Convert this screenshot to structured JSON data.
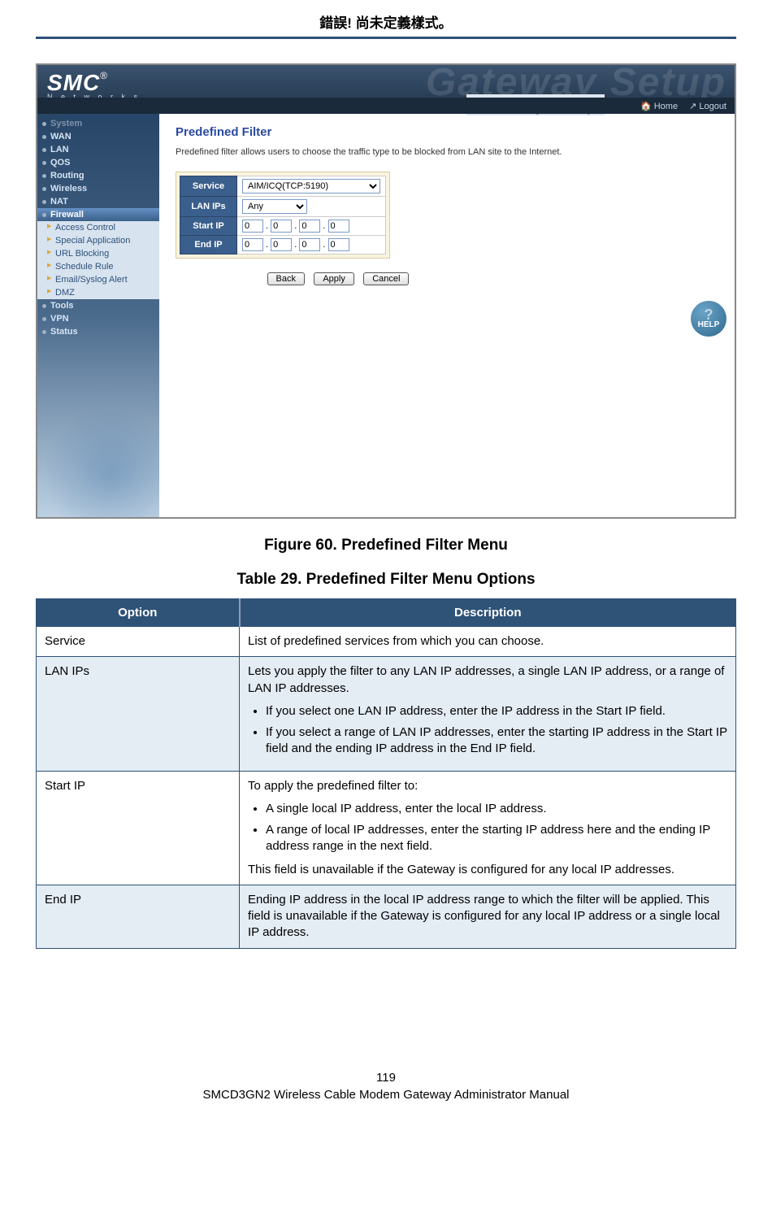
{
  "header_error": "錯誤! 尚未定義樣式。",
  "logo": {
    "main": "SMC",
    "reg": "®",
    "sub": "N e t w o r k s"
  },
  "ghost": "Gateway Setup",
  "subtitle": "Gateway Setup",
  "topbar": {
    "home": "Home",
    "logout": "Logout"
  },
  "sidebar": {
    "items": [
      {
        "label": "System",
        "dim": true
      },
      {
        "label": "WAN"
      },
      {
        "label": "LAN"
      },
      {
        "label": "QOS"
      },
      {
        "label": "Routing"
      },
      {
        "label": "Wireless"
      },
      {
        "label": "NAT"
      },
      {
        "label": "Firewall",
        "active": true
      },
      {
        "label": "Access Control",
        "sub": true
      },
      {
        "label": "Special Application",
        "sub": true
      },
      {
        "label": "URL Blocking",
        "sub": true
      },
      {
        "label": "Schedule Rule",
        "sub": true
      },
      {
        "label": "Email/Syslog Alert",
        "sub": true
      },
      {
        "label": "DMZ",
        "sub": true
      },
      {
        "label": "Tools"
      },
      {
        "label": "VPN"
      },
      {
        "label": "Status"
      }
    ]
  },
  "panel": {
    "title": "Predefined Filter",
    "intro": "Predefined filter allows users to choose the traffic type to be blocked from LAN site to the Internet.",
    "rows": {
      "service": {
        "label": "Service",
        "value": "AIM/ICQ(TCP:5190)"
      },
      "lanips": {
        "label": "LAN IPs",
        "value": "Any"
      },
      "startip": {
        "label": "Start IP",
        "oct": [
          "0",
          "0",
          "0",
          "0"
        ]
      },
      "endip": {
        "label": "End IP",
        "oct": [
          "0",
          "0",
          "0",
          "0"
        ]
      }
    },
    "buttons": {
      "back": "Back",
      "apply": "Apply",
      "cancel": "Cancel"
    },
    "help": "HELP"
  },
  "figure_caption": "Figure 60. Predefined Filter Menu",
  "table_caption": "Table 29. Predefined Filter Menu Options",
  "options_table": {
    "headers": {
      "option": "Option",
      "description": "Description"
    },
    "rows": [
      {
        "alt": false,
        "option": "Service",
        "desc_intro": "List of predefined services from which you can choose.",
        "bullets": [],
        "desc_outro": ""
      },
      {
        "alt": true,
        "option": "LAN IPs",
        "desc_intro": "Lets you apply the filter to any LAN IP addresses, a single LAN IP address, or a range of LAN IP addresses.",
        "bullets": [
          "If you select one LAN IP address, enter the IP address in the Start IP field.",
          "If you select a range of LAN IP addresses, enter the starting IP address in the Start IP field and the ending IP address in the End IP field."
        ],
        "desc_outro": ""
      },
      {
        "alt": false,
        "option": "Start IP",
        "desc_intro": "To apply the predefined filter to:",
        "bullets": [
          "A single local IP address, enter the local IP address.",
          "A range of local IP addresses, enter the starting IP address here and the ending IP address range in the next field."
        ],
        "desc_outro": "This field is unavailable if the Gateway is configured for any local IP addresses."
      },
      {
        "alt": true,
        "option": "End IP",
        "desc_intro": "Ending IP address in the local IP address range to which the filter will be applied. This field is unavailable if the Gateway is configured for any local IP address or a single local IP address.",
        "bullets": [],
        "desc_outro": ""
      }
    ]
  },
  "footer": {
    "page_no": "119",
    "manual": "SMCD3GN2 Wireless Cable Modem Gateway Administrator Manual"
  }
}
